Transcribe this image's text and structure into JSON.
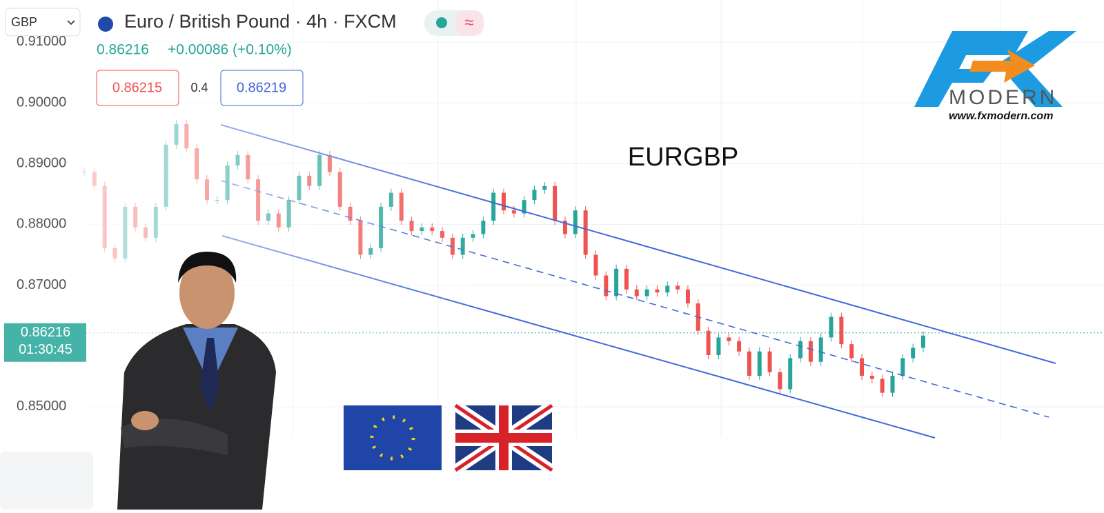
{
  "header": {
    "symbol_select": "GBP",
    "title": "Euro / British Pound · 4h · FXCM",
    "last": "0.86216",
    "change": "+0.00086 (+0.10%)",
    "bid": "0.86215",
    "spread": "0.4",
    "ask": "0.86219"
  },
  "chart": {
    "type": "candlestick",
    "title": "EURGBP",
    "ylim": [
      0.8331,
      0.9169
    ],
    "yticks": [
      {
        "value": 0.91,
        "label": "0.91000"
      },
      {
        "value": 0.9,
        "label": "0.90000"
      },
      {
        "value": 0.89,
        "label": "0.89000"
      },
      {
        "value": 0.88,
        "label": "0.88000"
      },
      {
        "value": 0.87,
        "label": "0.87000"
      },
      {
        "value": 0.85,
        "label": "0.85000"
      }
    ],
    "closes": [
      0.8886,
      0.8863,
      0.8761,
      0.8744,
      0.8829,
      0.8795,
      0.8778,
      0.8829,
      0.8931,
      0.8965,
      0.8925,
      0.8874,
      0.884,
      0.884,
      0.8897,
      0.8914,
      0.8874,
      0.8806,
      0.8818,
      0.8795,
      0.884,
      0.888,
      0.8863,
      0.8914,
      0.8886,
      0.8829,
      0.8806,
      0.875,
      0.8761,
      0.8829,
      0.8852,
      0.8806,
      0.8789,
      0.8795,
      0.8789,
      0.8778,
      0.875,
      0.8778,
      0.8784,
      0.8806,
      0.8852,
      0.8823,
      0.8818,
      0.884,
      0.8857,
      0.8863,
      0.8806,
      0.8784,
      0.8823,
      0.875,
      0.8716,
      0.8682,
      0.8727,
      0.8693,
      0.8682,
      0.8693,
      0.8688,
      0.8699,
      0.8693,
      0.867,
      0.8625,
      0.8585,
      0.8614,
      0.8608,
      0.8591,
      0.8551,
      0.8591,
      0.8557,
      0.8529,
      0.858,
      0.8608,
      0.8574,
      0.8614,
      0.8648,
      0.8603,
      0.858,
      0.8551,
      0.8546,
      0.8523,
      0.8551,
      0.858,
      0.8597,
      0.8617
    ],
    "up_color": "#26a69a",
    "down_color": "#ef5350",
    "price_line": {
      "value": 0.86216,
      "label": "0.86216",
      "countdown": "01:30:45"
    }
  },
  "logo": {
    "mark": "FX",
    "name": "MODERN",
    "url": "www.fxmodern.com"
  }
}
